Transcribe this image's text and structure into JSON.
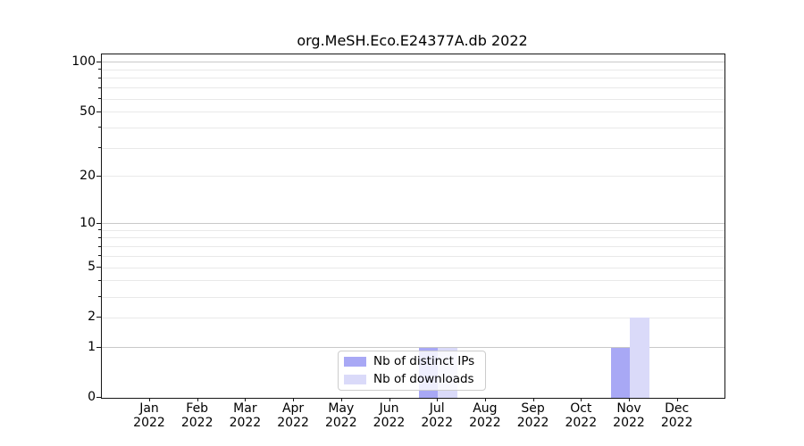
{
  "title": "org.MeSH.Eco.E24377A.db 2022",
  "chart_data": {
    "type": "bar",
    "title": "org.MeSH.Eco.E24377A.db 2022",
    "categories": [
      "Jan 2022",
      "Feb 2022",
      "Mar 2022",
      "Apr 2022",
      "May 2022",
      "Jun 2022",
      "Jul 2022",
      "Aug 2022",
      "Sep 2022",
      "Oct 2022",
      "Nov 2022",
      "Dec 2022"
    ],
    "series": [
      {
        "name": "Nb of distinct IPs",
        "color": "#a8a8f5",
        "values": [
          0,
          0,
          0,
          0,
          0,
          0,
          1,
          0,
          0,
          0,
          1,
          0
        ]
      },
      {
        "name": "Nb of downloads",
        "color": "#dadaf9",
        "values": [
          0,
          0,
          0,
          0,
          0,
          0,
          1,
          0,
          0,
          0,
          2,
          0
        ]
      }
    ],
    "xlabel": "",
    "ylabel": "",
    "yscale": "log1p",
    "ylim": [
      0,
      112
    ],
    "y_tick_values": [
      0,
      1,
      2,
      5,
      10,
      20,
      50,
      100
    ],
    "y_tick_labels": [
      "0",
      "1",
      "2",
      "5",
      "10",
      "20",
      "50",
      "100"
    ],
    "y_strong_gridlines": [
      1,
      10,
      100
    ],
    "y_minor_gridlines": [
      3,
      4,
      6,
      7,
      8,
      9,
      30,
      40,
      60,
      70,
      80,
      90
    ],
    "grid": true,
    "legend_position": "lower center inside",
    "frame": true
  },
  "legend": {
    "items": [
      {
        "label": "Nb of distinct IPs",
        "color": "#a8a8f5"
      },
      {
        "label": "Nb of downloads",
        "color": "#dadaf9"
      }
    ]
  },
  "colors": {
    "bar_distinct_ips": "#a8a8f5",
    "bar_downloads": "#dadaf9",
    "grid_major": "#c9c9c9",
    "grid_minor": "#e9e9e9",
    "spine": "#161616",
    "background": "#ffffff",
    "legend_border": "#cccccc"
  }
}
